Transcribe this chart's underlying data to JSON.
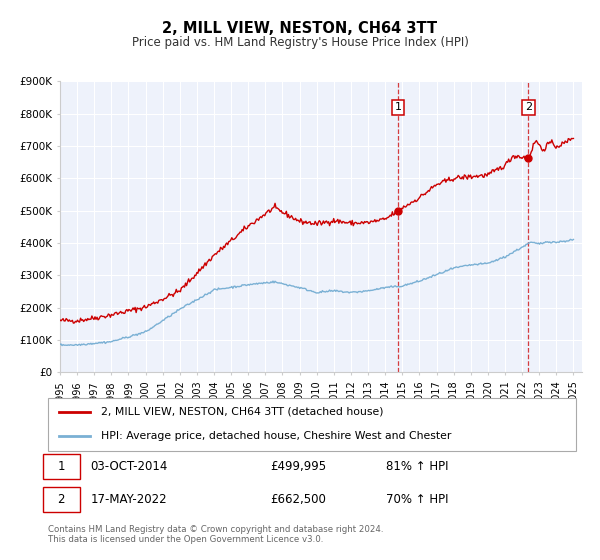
{
  "title": "2, MILL VIEW, NESTON, CH64 3TT",
  "subtitle": "Price paid vs. HM Land Registry's House Price Index (HPI)",
  "ylim": [
    0,
    900000
  ],
  "xlim_start": 1995,
  "xlim_end": 2025.5,
  "yticks": [
    0,
    100000,
    200000,
    300000,
    400000,
    500000,
    600000,
    700000,
    800000,
    900000
  ],
  "ytick_labels": [
    "£0",
    "£100K",
    "£200K",
    "£300K",
    "£400K",
    "£500K",
    "£600K",
    "£700K",
    "£800K",
    "£900K"
  ],
  "xticks": [
    1995,
    1996,
    1997,
    1998,
    1999,
    2000,
    2001,
    2002,
    2003,
    2004,
    2005,
    2006,
    2007,
    2008,
    2009,
    2010,
    2011,
    2012,
    2013,
    2014,
    2015,
    2016,
    2017,
    2018,
    2019,
    2020,
    2021,
    2022,
    2023,
    2024,
    2025
  ],
  "red_line_color": "#cc0000",
  "blue_line_color": "#7ab0d4",
  "sale1_x": 2014.75,
  "sale1_y": 499995,
  "sale2_x": 2022.37,
  "sale2_y": 662500,
  "legend_label_red": "2, MILL VIEW, NESTON, CH64 3TT (detached house)",
  "legend_label_blue": "HPI: Average price, detached house, Cheshire West and Chester",
  "sale1_date": "03-OCT-2014",
  "sale1_price": "£499,995",
  "sale1_hpi": "81% ↑ HPI",
  "sale2_date": "17-MAY-2022",
  "sale2_price": "£662,500",
  "sale2_hpi": "70% ↑ HPI",
  "footer_line1": "Contains HM Land Registry data © Crown copyright and database right 2024.",
  "footer_line2": "This data is licensed under the Open Government Licence v3.0.",
  "background_color": "#ffffff",
  "plot_bg_color": "#eef2fb"
}
